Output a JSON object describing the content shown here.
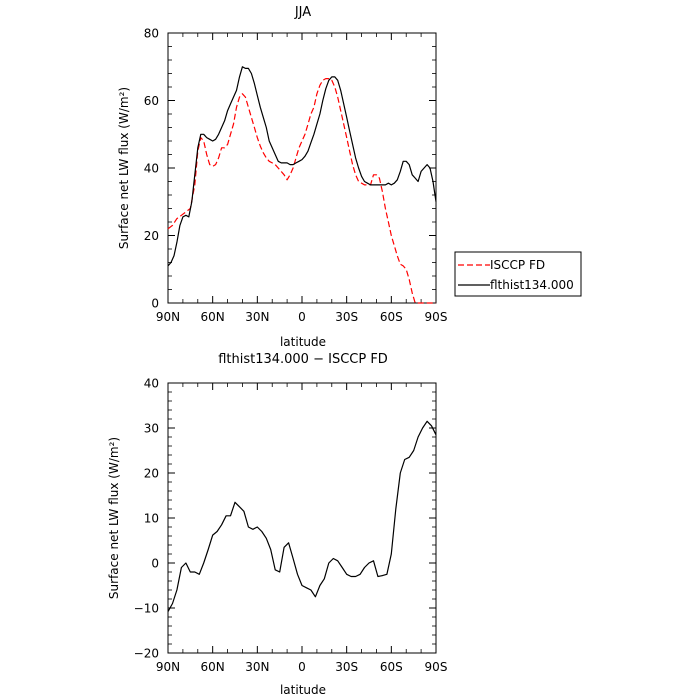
{
  "chart_data": [
    {
      "type": "line",
      "title": "JJA",
      "xlabel": "latitude",
      "ylabel": "Surface net LW flux (W/m²)",
      "ylim": [
        0,
        80
      ],
      "yticks": [
        "0",
        "20",
        "40",
        "60",
        "80"
      ],
      "xlim": [
        90,
        -90
      ],
      "xticks": [
        {
          "value": 90,
          "label": "90N"
        },
        {
          "value": 60,
          "label": "60N"
        },
        {
          "value": 30,
          "label": "30N"
        },
        {
          "value": 0,
          "label": "0"
        },
        {
          "value": -30,
          "label": "30S"
        },
        {
          "value": -60,
          "label": "60S"
        },
        {
          "value": -90,
          "label": "90S"
        }
      ],
      "legend_position": "right",
      "series": [
        {
          "name": "ISCCP FD",
          "color": "#ff0000",
          "style": "dashed",
          "x": [
            90,
            87,
            84,
            81,
            78,
            75,
            72,
            70,
            68,
            66,
            64,
            62,
            60,
            58,
            56,
            54,
            52,
            50,
            48,
            46,
            44,
            42,
            40,
            38,
            36,
            34,
            32,
            30,
            28,
            26,
            24,
            22,
            20,
            18,
            16,
            14,
            12,
            10,
            8,
            6,
            4,
            2,
            0,
            -2,
            -4,
            -6,
            -8,
            -10,
            -12,
            -14,
            -16,
            -18,
            -20,
            -22,
            -24,
            -26,
            -28,
            -30,
            -32,
            -34,
            -36,
            -38,
            -40,
            -42,
            -44,
            -46,
            -48,
            -50,
            -52,
            -54,
            -56,
            -58,
            -60,
            -62,
            -64,
            -66,
            -68,
            -70,
            -72,
            -74,
            -76,
            -78,
            -80,
            -82,
            -84,
            -86,
            -88,
            -90
          ],
          "y": [
            22,
            23,
            25,
            26,
            27,
            28,
            35,
            45,
            49,
            48,
            44,
            41,
            40.5,
            41,
            43,
            46,
            46,
            47,
            50,
            53,
            58,
            61,
            62,
            61,
            58,
            55,
            52,
            49,
            46.5,
            44.5,
            43,
            42,
            41.5,
            41,
            40,
            39,
            38,
            36.5,
            38,
            40,
            43,
            46,
            48,
            50,
            53,
            56,
            58,
            62,
            64.5,
            66,
            66.5,
            66.5,
            66,
            64,
            61,
            57,
            53,
            49,
            45,
            41,
            38,
            36,
            35.5,
            35,
            35,
            35,
            38,
            38,
            37,
            33,
            28,
            24,
            20,
            17,
            14,
            11.5,
            11,
            10,
            7,
            3,
            0,
            0,
            0,
            0,
            0,
            0,
            0,
            0
          ]
        },
        {
          "name": "flthist134.000",
          "color": "#000000",
          "style": "solid",
          "x": [
            90,
            88,
            86,
            84,
            82,
            80,
            78,
            76,
            74,
            72,
            70,
            68,
            66,
            64,
            62,
            60,
            58,
            56,
            54,
            52,
            50,
            48,
            46,
            44,
            42,
            40,
            38,
            36,
            34,
            32,
            30,
            28,
            26,
            24,
            22,
            20,
            18,
            16,
            14,
            12,
            10,
            8,
            6,
            4,
            2,
            0,
            -2,
            -4,
            -6,
            -8,
            -10,
            -12,
            -14,
            -16,
            -18,
            -20,
            -22,
            -24,
            -26,
            -28,
            -30,
            -32,
            -34,
            -36,
            -38,
            -40,
            -42,
            -44,
            -46,
            -48,
            -50,
            -52,
            -54,
            -56,
            -58,
            -60,
            -62,
            -64,
            -66,
            -68,
            -70,
            -72,
            -74,
            -76,
            -78,
            -80,
            -82,
            -84,
            -86,
            -88,
            -90
          ],
          "y": [
            11,
            12,
            14,
            18,
            23,
            25.5,
            26,
            25.5,
            30,
            38,
            46,
            50,
            50,
            49,
            48.5,
            48,
            48.5,
            50,
            52,
            54,
            57,
            59,
            61,
            63,
            67,
            70,
            69.5,
            69.5,
            68,
            65,
            61.5,
            58,
            55,
            52,
            48,
            46,
            44,
            42,
            41.5,
            41.5,
            41.5,
            41,
            41,
            41.5,
            42,
            42.5,
            43.5,
            45,
            47.5,
            50,
            53,
            56,
            60,
            63.5,
            66,
            67,
            67,
            66,
            63,
            59,
            55,
            51,
            47,
            43,
            40,
            37.5,
            36,
            35.5,
            35,
            35,
            35,
            35,
            35,
            35,
            35.5,
            35,
            35.5,
            36.5,
            39,
            42,
            42,
            41,
            38,
            37,
            36,
            39,
            40,
            41,
            40,
            36,
            30
          ]
        }
      ]
    },
    {
      "type": "line",
      "title": "flthist134.000 − ISCCP FD",
      "xlabel": "latitude",
      "ylabel": "Surface net LW flux (W/m²)",
      "ylim": [
        -20,
        40
      ],
      "yticks": [
        "−20",
        "−10",
        "0",
        "10",
        "20",
        "30",
        "40"
      ],
      "xlim": [
        90,
        -90
      ],
      "xticks": [
        {
          "value": 90,
          "label": "90N"
        },
        {
          "value": 60,
          "label": "60N"
        },
        {
          "value": 30,
          "label": "30N"
        },
        {
          "value": 0,
          "label": "0"
        },
        {
          "value": -30,
          "label": "30S"
        },
        {
          "value": -60,
          "label": "60S"
        },
        {
          "value": -90,
          "label": "90S"
        }
      ],
      "series": [
        {
          "color": "#000000",
          "style": "solid",
          "x": [
            90,
            87,
            84,
            81,
            78,
            75,
            72,
            69,
            66,
            63,
            60,
            57,
            54,
            51,
            48,
            45,
            42,
            39,
            36,
            33,
            30,
            27,
            24,
            21,
            18,
            15,
            12,
            9,
            6,
            3,
            0,
            -3,
            -6,
            -9,
            -12,
            -15,
            -18,
            -21,
            -24,
            -27,
            -30,
            -33,
            -36,
            -39,
            -42,
            -45,
            -48,
            -51,
            -54,
            -57,
            -60,
            -63,
            -66,
            -69,
            -72,
            -75,
            -78,
            -81,
            -84,
            -87,
            -90
          ],
          "y": [
            -10.8,
            -9,
            -6,
            -1,
            0,
            -2,
            -2,
            -2.5,
            0,
            3,
            6.2,
            7,
            8.5,
            10.5,
            10.5,
            13.5,
            12.5,
            11.5,
            8,
            7.5,
            8,
            7,
            5.5,
            3,
            -1.5,
            -2,
            3.5,
            4.5,
            1,
            -2.5,
            -5,
            -5.5,
            -6,
            -7.5,
            -5,
            -3.5,
            0,
            1,
            0.5,
            -1,
            -2.5,
            -3,
            -3,
            -2.5,
            -1,
            0,
            0.5,
            -3,
            -2.8,
            -2.5,
            2,
            12,
            20,
            23,
            23.5,
            25,
            28,
            30,
            31.5,
            30.5,
            28.5
          ]
        }
      ]
    }
  ]
}
